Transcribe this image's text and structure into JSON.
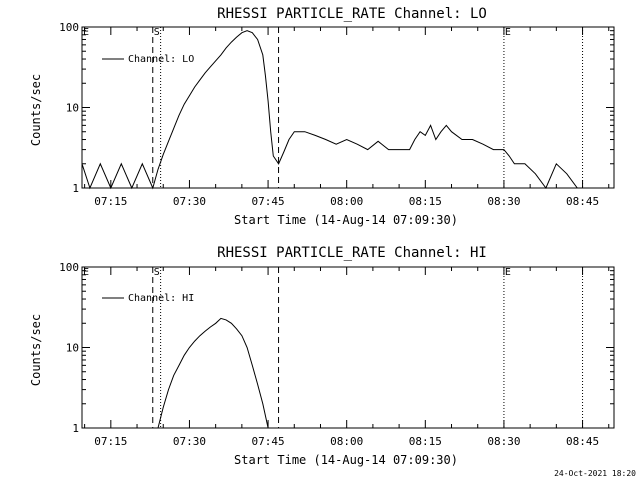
{
  "chart_data": [
    {
      "type": "line",
      "title": "RHESSI PARTICLE_RATE Channel: LO",
      "xlabel": "Start Time (14-Aug-14 07:09:30)",
      "ylabel": "Counts/sec",
      "y_scale": "log",
      "ylim": [
        1,
        100
      ],
      "y_ticks": [
        "1",
        "10",
        "100"
      ],
      "xlim": [
        "07:09:30",
        "08:51:00"
      ],
      "x_ticks": [
        "07:15",
        "07:30",
        "07:45",
        "08:00",
        "08:15",
        "08:30",
        "08:45"
      ],
      "legend": "top-left",
      "grid": false,
      "markers": [
        {
          "label": "E",
          "time": "07:09:30",
          "style": "edge"
        },
        {
          "label": "S",
          "time": "07:23:00",
          "style": "dashed"
        },
        {
          "label": "",
          "time": "07:24:30",
          "style": "dotted"
        },
        {
          "label": "",
          "time": "07:47:00",
          "style": "dashed"
        },
        {
          "label": "E",
          "time": "08:30:00",
          "style": "dotted"
        },
        {
          "label": "",
          "time": "08:45:00",
          "style": "dotted"
        }
      ],
      "series": [
        {
          "name": "Channel: LO",
          "color": "#000000",
          "x": [
            "07:09:30",
            "07:11:00",
            "07:13:00",
            "07:15:00",
            "07:17:00",
            "07:19:00",
            "07:21:00",
            "07:23:00",
            "07:24:00",
            "07:25:00",
            "07:26:00",
            "07:27:00",
            "07:28:00",
            "07:29:00",
            "07:30:00",
            "07:31:00",
            "07:32:00",
            "07:33:00",
            "07:34:00",
            "07:35:00",
            "07:36:00",
            "07:37:00",
            "07:38:00",
            "07:39:00",
            "07:40:00",
            "07:41:00",
            "07:42:00",
            "07:43:00",
            "07:44:00",
            "07:44:30",
            "07:45:00",
            "07:45:30",
            "07:46:00",
            "07:47:00",
            "07:48:00",
            "07:49:00",
            "07:50:00",
            "07:52:00",
            "07:54:00",
            "07:56:00",
            "07:58:00",
            "08:00:00",
            "08:02:00",
            "08:04:00",
            "08:06:00",
            "08:08:00",
            "08:10:00",
            "08:12:00",
            "08:13:00",
            "08:14:00",
            "08:15:00",
            "08:16:00",
            "08:17:00",
            "08:18:00",
            "08:19:00",
            "08:20:00",
            "08:22:00",
            "08:24:00",
            "08:26:00",
            "08:28:00",
            "08:30:00",
            "08:31:00",
            "08:32:00",
            "08:34:00",
            "08:36:00",
            "08:38:00",
            "08:40:00",
            "08:42:00",
            "08:44:00",
            "08:46:00"
          ],
          "y": [
            2,
            1,
            2,
            1,
            2,
            1,
            2,
            1,
            1.7,
            2.6,
            3.8,
            5.5,
            8,
            11,
            14,
            18,
            22,
            27,
            32,
            38,
            45,
            55,
            65,
            75,
            85,
            90,
            85,
            70,
            45,
            25,
            12,
            5,
            2.5,
            2,
            2.8,
            4,
            5,
            5,
            4.5,
            4,
            3.5,
            4,
            3.5,
            3,
            3.8,
            3,
            3,
            3,
            4,
            5,
            4.5,
            6,
            4,
            5,
            6,
            5,
            4,
            4,
            3.5,
            3,
            3,
            2.5,
            2,
            2,
            1.5,
            1,
            2,
            1.5,
            1,
            1
          ]
        }
      ]
    },
    {
      "type": "line",
      "title": "RHESSI PARTICLE_RATE Channel: HI",
      "xlabel": "Start Time (14-Aug-14 07:09:30)",
      "ylabel": "Counts/sec",
      "y_scale": "log",
      "ylim": [
        1,
        100
      ],
      "y_ticks": [
        "1",
        "10",
        "100"
      ],
      "xlim": [
        "07:09:30",
        "08:51:00"
      ],
      "x_ticks": [
        "07:15",
        "07:30",
        "07:45",
        "08:00",
        "08:15",
        "08:30",
        "08:45"
      ],
      "legend": "top-left",
      "grid": false,
      "markers": [
        {
          "label": "E",
          "time": "07:09:30",
          "style": "edge"
        },
        {
          "label": "S",
          "time": "07:23:00",
          "style": "dashed"
        },
        {
          "label": "",
          "time": "07:24:30",
          "style": "dotted"
        },
        {
          "label": "",
          "time": "07:47:00",
          "style": "dashed"
        },
        {
          "label": "E",
          "time": "08:30:00",
          "style": "dotted"
        },
        {
          "label": "",
          "time": "08:45:00",
          "style": "dotted"
        }
      ],
      "series": [
        {
          "name": "Channel: HI",
          "color": "#000000",
          "x": [
            "07:24:00",
            "07:25:00",
            "07:26:00",
            "07:27:00",
            "07:28:00",
            "07:29:00",
            "07:30:00",
            "07:31:00",
            "07:32:00",
            "07:33:00",
            "07:34:00",
            "07:35:00",
            "07:36:00",
            "07:37:00",
            "07:38:00",
            "07:39:00",
            "07:40:00",
            "07:41:00",
            "07:42:00",
            "07:43:00",
            "07:44:00",
            "07:45:00"
          ],
          "y": [
            1,
            1.8,
            3,
            4.5,
            6,
            8,
            10,
            12,
            14,
            16,
            18,
            20,
            23,
            22,
            20,
            17,
            14,
            10,
            6,
            3.5,
            2,
            1
          ]
        }
      ]
    }
  ],
  "timestamp": "24-Oct-2021 18:20"
}
